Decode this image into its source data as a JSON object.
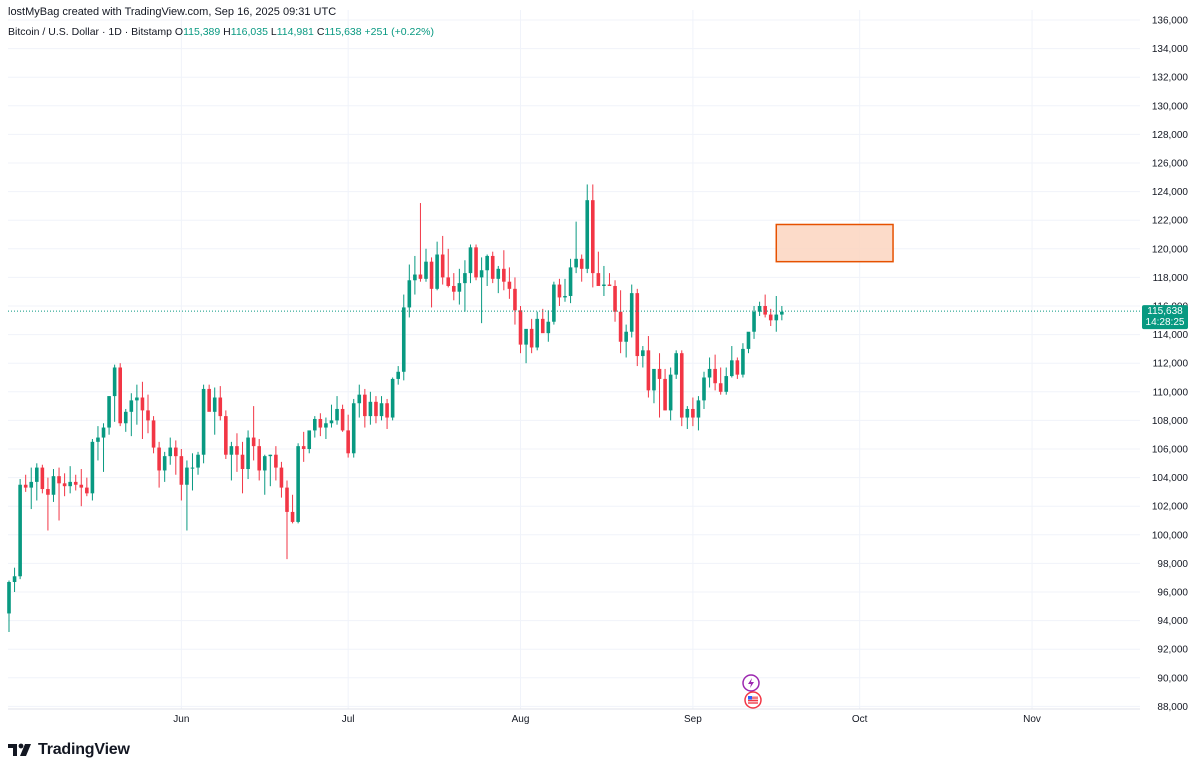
{
  "header": {
    "attribution": "lostMyBag created with TradingView.com, Sep 16, 2025 09:31 UTC"
  },
  "legend": {
    "symbol": "Bitcoin / U.S. Dollar · 1D · Bitstamp",
    "o_label": "O",
    "o_value": "115,389",
    "h_label": "H",
    "h_value": "116,035",
    "l_label": "L",
    "l_value": "114,981",
    "c_label": "C",
    "c_value": "115,638",
    "change": "+251 (+0.22%)"
  },
  "price_tag": {
    "price": "115,638",
    "countdown": "14:28:25",
    "color": "#089981"
  },
  "brand": {
    "name": "TradingView",
    "logo_icon": "tradingview-logo-icon"
  },
  "events": [
    {
      "icon": "lightning-event-icon"
    },
    {
      "icon": "us-flag-event-icon"
    }
  ],
  "colors": {
    "up": "#089981",
    "down": "#f23645",
    "grid": "#f0f3fa",
    "zone_fill": "#fcd5bf",
    "zone_stroke": "#e65100"
  },
  "chart_data": {
    "type": "candlestick",
    "symbol": "Bitcoin / U.S. Dollar",
    "timeframe": "1D",
    "exchange": "Bitstamp",
    "ylim": [
      87000,
      136000
    ],
    "y_ticks": [
      "136,000",
      "134,000",
      "132,000",
      "130,000",
      "128,000",
      "126,000",
      "124,000",
      "122,000",
      "120,000",
      "118,000",
      "116,000",
      "114,000",
      "112,000",
      "110,000",
      "108,000",
      "106,000",
      "104,000",
      "102,000",
      "100,000",
      "98,000",
      "96,000",
      "94,000",
      "92,000",
      "90,000",
      "88,000"
    ],
    "x_ticks": [
      {
        "label": "Jun",
        "date": "2025-06-01"
      },
      {
        "label": "Jul",
        "date": "2025-07-01"
      },
      {
        "label": "Aug",
        "date": "2025-08-01"
      },
      {
        "label": "Sep",
        "date": "2025-09-01"
      },
      {
        "label": "Oct",
        "date": "2025-10-01"
      },
      {
        "label": "Nov",
        "date": "2025-11-01"
      }
    ],
    "x_range": [
      "2025-05-01",
      "2025-11-29"
    ],
    "start_date": "2025-05-01",
    "candles": [
      [
        94500,
        96800,
        93200,
        96700
      ],
      [
        96700,
        97700,
        96000,
        97100
      ],
      [
        97100,
        103900,
        96900,
        103500
      ],
      [
        103500,
        104200,
        103000,
        103300
      ],
      [
        103300,
        104700,
        101800,
        103700
      ],
      [
        103700,
        105000,
        102400,
        104700
      ],
      [
        104700,
        104900,
        102900,
        103200
      ],
      [
        103200,
        104000,
        100300,
        102800
      ],
      [
        102800,
        104600,
        102300,
        104100
      ],
      [
        104100,
        104700,
        101000,
        103600
      ],
      [
        103600,
        104300,
        102700,
        103400
      ],
      [
        103400,
        104800,
        102900,
        103700
      ],
      [
        103700,
        104200,
        103100,
        103500
      ],
      [
        103500,
        104600,
        102000,
        103300
      ],
      [
        103300,
        104000,
        102700,
        102900
      ],
      [
        102900,
        106700,
        102400,
        106500
      ],
      [
        106500,
        107600,
        105200,
        106800
      ],
      [
        106800,
        107800,
        104400,
        107500
      ],
      [
        107500,
        109700,
        107000,
        109700
      ],
      [
        109700,
        111900,
        107900,
        111700
      ],
      [
        111700,
        112000,
        107600,
        107800
      ],
      [
        107800,
        108800,
        107200,
        108600
      ],
      [
        108600,
        109900,
        106900,
        109400
      ],
      [
        109400,
        110500,
        107700,
        109600
      ],
      [
        109600,
        110700,
        106700,
        108700
      ],
      [
        108700,
        109800,
        107100,
        108000
      ],
      [
        108000,
        108300,
        105700,
        106100
      ],
      [
        106100,
        106500,
        103300,
        104500
      ],
      [
        104500,
        105800,
        103700,
        105500
      ],
      [
        105500,
        106800,
        104900,
        106100
      ],
      [
        106100,
        106600,
        104200,
        105500
      ],
      [
        105500,
        106000,
        102400,
        103500
      ],
      [
        103500,
        105200,
        100300,
        104700
      ],
      [
        104700,
        105700,
        103100,
        104700
      ],
      [
        104700,
        105800,
        104200,
        105600
      ],
      [
        105600,
        110500,
        105000,
        110200
      ],
      [
        110200,
        110500,
        108700,
        108600
      ],
      [
        108600,
        110300,
        107000,
        109600
      ],
      [
        109600,
        110400,
        108000,
        108300
      ],
      [
        108300,
        108700,
        105300,
        105600
      ],
      [
        105600,
        106500,
        103800,
        106200
      ],
      [
        106200,
        107100,
        104400,
        105600
      ],
      [
        105600,
        106500,
        102900,
        104600
      ],
      [
        104600,
        107300,
        103900,
        106800
      ],
      [
        106800,
        109000,
        105200,
        106200
      ],
      [
        106200,
        106700,
        103800,
        104500
      ],
      [
        104500,
        105600,
        102800,
        105500
      ],
      [
        105500,
        105600,
        103400,
        105600
      ],
      [
        105600,
        106200,
        103800,
        104700
      ],
      [
        104700,
        105100,
        102600,
        103300
      ],
      [
        103300,
        103800,
        98300,
        101600
      ],
      [
        101600,
        102800,
        100800,
        100900
      ],
      [
        100900,
        106400,
        100800,
        106200
      ],
      [
        106200,
        107200,
        105100,
        106000
      ],
      [
        106000,
        106900,
        105700,
        107300
      ],
      [
        107300,
        108300,
        106800,
        108100
      ],
      [
        108100,
        108500,
        106900,
        107500
      ],
      [
        107500,
        108200,
        106700,
        107800
      ],
      [
        107800,
        109100,
        107500,
        108000
      ],
      [
        108000,
        109700,
        107700,
        108800
      ],
      [
        108800,
        109100,
        107200,
        107300
      ],
      [
        107300,
        108400,
        105400,
        105700
      ],
      [
        105700,
        109500,
        105400,
        109200
      ],
      [
        109200,
        110500,
        108200,
        109800
      ],
      [
        109800,
        110200,
        107500,
        108300
      ],
      [
        108300,
        110000,
        107700,
        109300
      ],
      [
        109300,
        109700,
        107800,
        108300
      ],
      [
        108300,
        109700,
        108000,
        109200
      ],
      [
        109200,
        109500,
        107400,
        108200
      ],
      [
        108200,
        111000,
        108000,
        110900
      ],
      [
        110900,
        111800,
        110500,
        111400
      ],
      [
        111400,
        116800,
        110800,
        115900
      ],
      [
        115900,
        118900,
        115200,
        117800
      ],
      [
        117800,
        119500,
        116800,
        118200
      ],
      [
        118200,
        123200,
        117700,
        117900
      ],
      [
        117900,
        120000,
        117700,
        119100
      ],
      [
        119100,
        119400,
        115900,
        117200
      ],
      [
        117200,
        120500,
        117100,
        119600
      ],
      [
        119600,
        120900,
        117500,
        118000
      ],
      [
        118000,
        120000,
        117300,
        117400
      ],
      [
        117400,
        118300,
        116400,
        117000
      ],
      [
        117000,
        118600,
        116100,
        117600
      ],
      [
        117600,
        119200,
        115600,
        118300
      ],
      [
        118300,
        120300,
        117600,
        120100
      ],
      [
        120100,
        120300,
        117800,
        118000
      ],
      [
        118000,
        119400,
        114800,
        118500
      ],
      [
        118500,
        119600,
        117400,
        119500
      ],
      [
        119500,
        119800,
        117600,
        117900
      ],
      [
        117900,
        118800,
        116900,
        118600
      ],
      [
        118600,
        119900,
        117100,
        117700
      ],
      [
        117700,
        118700,
        116500,
        117200
      ],
      [
        117200,
        118000,
        114700,
        115700
      ],
      [
        115700,
        116000,
        112700,
        113300
      ],
      [
        113300,
        114200,
        112000,
        114400
      ],
      [
        114400,
        115100,
        112700,
        113100
      ],
      [
        113100,
        115600,
        112900,
        115100
      ],
      [
        115100,
        115800,
        114200,
        114100
      ],
      [
        114100,
        115700,
        113500,
        114900
      ],
      [
        114900,
        117700,
        114700,
        117500
      ],
      [
        117500,
        117900,
        116000,
        116600
      ],
      [
        116600,
        117900,
        116300,
        116700
      ],
      [
        116700,
        119300,
        116200,
        118700
      ],
      [
        118700,
        121900,
        118300,
        119300
      ],
      [
        119300,
        119600,
        117700,
        118600
      ],
      [
        118600,
        124500,
        118300,
        123400
      ],
      [
        123400,
        124500,
        117300,
        118300
      ],
      [
        118300,
        119800,
        117700,
        117400
      ],
      [
        117400,
        118800,
        116700,
        117500
      ],
      [
        117500,
        118300,
        117500,
        117400
      ],
      [
        117400,
        117800,
        114900,
        115600
      ],
      [
        115600,
        117100,
        112700,
        113500
      ],
      [
        113500,
        114700,
        112400,
        114200
      ],
      [
        114200,
        117500,
        113800,
        116900
      ],
      [
        116900,
        117200,
        111800,
        112500
      ],
      [
        112500,
        113200,
        111700,
        112900
      ],
      [
        112900,
        113900,
        109600,
        110100
      ],
      [
        110100,
        111400,
        109200,
        111600
      ],
      [
        111600,
        112700,
        108200,
        110900
      ],
      [
        110900,
        111600,
        108700,
        108700
      ],
      [
        108700,
        111700,
        108000,
        111200
      ],
      [
        111200,
        112900,
        110900,
        112700
      ],
      [
        112700,
        112900,
        107600,
        108200
      ],
      [
        108200,
        109000,
        107400,
        108800
      ],
      [
        108800,
        109600,
        107600,
        108200
      ],
      [
        108200,
        109700,
        107300,
        109400
      ],
      [
        109400,
        111400,
        108800,
        111000
      ],
      [
        111000,
        112400,
        110300,
        111600
      ],
      [
        111600,
        112600,
        110100,
        110600
      ],
      [
        110600,
        111700,
        109800,
        110000
      ],
      [
        110000,
        111700,
        109800,
        111100
      ],
      [
        111100,
        113200,
        111000,
        112200
      ],
      [
        112200,
        112400,
        110900,
        111200
      ],
      [
        111200,
        113400,
        111000,
        113000
      ],
      [
        113000,
        114100,
        112700,
        114200
      ],
      [
        114200,
        116000,
        113700,
        115600
      ],
      [
        115600,
        116300,
        115300,
        116000
      ],
      [
        116000,
        116800,
        115200,
        115400
      ],
      [
        115400,
        115800,
        114600,
        115000
      ],
      [
        115000,
        116700,
        114200,
        115400
      ],
      [
        115400,
        116000,
        115000,
        115600
      ]
    ],
    "last_price": 115638,
    "price_box_zone": {
      "from_date": "2025-09-16",
      "to_date": "2025-10-07",
      "low": 119100,
      "high": 121700
    }
  }
}
